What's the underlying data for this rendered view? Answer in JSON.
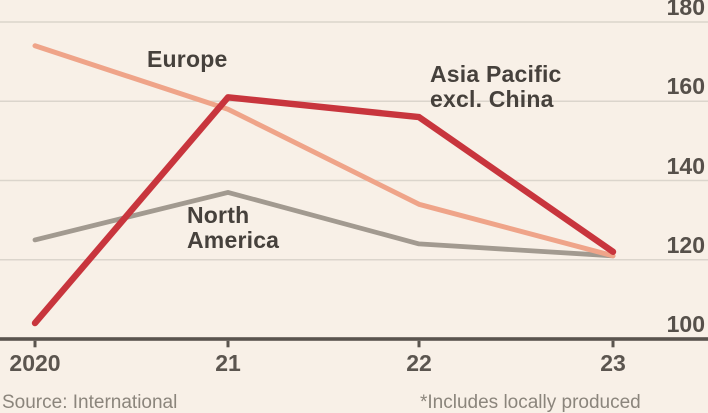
{
  "chart_data": {
    "type": "line",
    "x_tick_labels": [
      "2020",
      "21",
      "22",
      "23"
    ],
    "y_ticks": [
      100,
      120,
      140,
      160,
      180
    ],
    "ylim": [
      100,
      180
    ],
    "grid": "horizontal",
    "y_tick_side": "right",
    "series": [
      {
        "name": "North America",
        "color": "#a29a90",
        "values": [
          125,
          137,
          124,
          121
        ]
      },
      {
        "name": "Europe",
        "color": "#efa489",
        "values": [
          174,
          158,
          134,
          121
        ]
      },
      {
        "name": "Asia Pacific excl. China",
        "color": "#c8353d",
        "values": [
          104,
          161,
          156,
          122
        ]
      }
    ]
  },
  "labels": {
    "europe": "Europe",
    "asia_line1": "Asia Pacific",
    "asia_line2": "excl. China",
    "north_america_line1": "North",
    "north_america_line2": "America"
  },
  "footer": {
    "source": "Source: International",
    "footnote": "*Includes locally produced"
  },
  "colors": {
    "background": "#f8f0e7",
    "gridline": "#dbd5cc",
    "axis": "#5a544e",
    "series_label_text": "#46413c",
    "tick_label_text": "#56504a",
    "footer_text": "#8b857c"
  }
}
